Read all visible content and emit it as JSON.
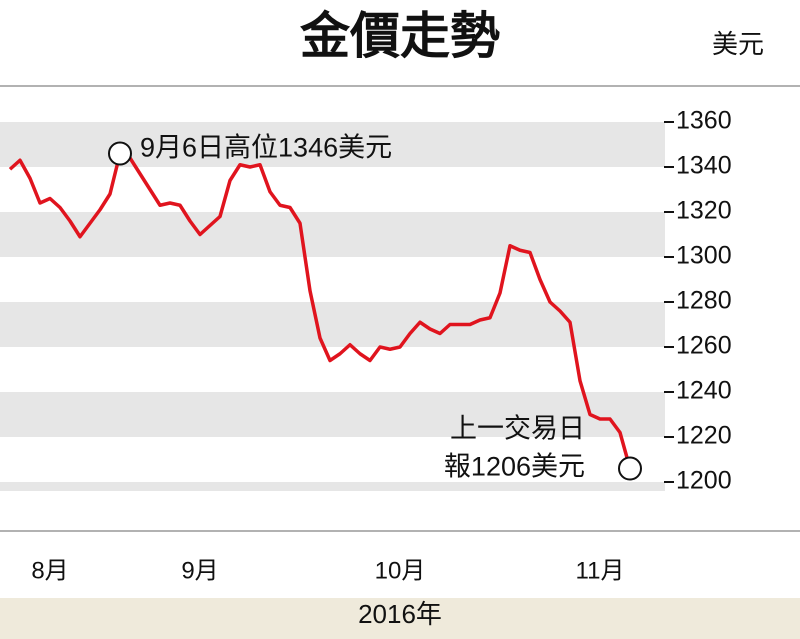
{
  "chart_data": {
    "type": "line",
    "title": "金價走勢",
    "unit": "美元",
    "xlabel": "2016年",
    "categories": [
      null,
      null,
      null,
      null,
      "8月",
      null,
      null,
      null,
      null,
      null,
      null,
      null,
      null,
      null,
      null,
      null,
      null,
      null,
      null,
      "9月",
      null,
      null,
      null,
      null,
      null,
      null,
      null,
      null,
      null,
      null,
      null,
      null,
      null,
      null,
      null,
      null,
      null,
      null,
      null,
      "10月",
      null,
      null,
      null,
      null,
      null,
      null,
      null,
      null,
      null,
      null,
      null,
      null,
      null,
      null,
      null,
      null,
      null,
      null,
      null,
      "11月",
      null,
      null,
      null
    ],
    "values": [
      1339,
      1343,
      1335,
      1324,
      1326,
      1322,
      1316,
      1309,
      1315,
      1321,
      1328,
      1346,
      1344,
      1337,
      1330,
      1323,
      1324,
      1323,
      1316,
      1310,
      1314,
      1318,
      1334,
      1341,
      1340,
      1341,
      1329,
      1323,
      1322,
      1315,
      1285,
      1264,
      1254,
      1257,
      1261,
      1257,
      1254,
      1260,
      1259,
      1260,
      1266,
      1271,
      1268,
      1266,
      1270,
      1270,
      1270,
      1272,
      1273,
      1284,
      1305,
      1303,
      1302,
      1290,
      1280,
      1276,
      1271,
      1245,
      1230,
      1228,
      1228,
      1222,
      1206
    ],
    "color": "#e0141e",
    "ylim": [
      1196,
      1374
    ],
    "yticks": [
      1200,
      1220,
      1240,
      1260,
      1280,
      1300,
      1320,
      1340,
      1360
    ],
    "annotations": [
      {
        "text": "9月6日高位1346美元"
      },
      {
        "lines": [
          "上一交易日",
          "報1206美元"
        ]
      }
    ]
  }
}
